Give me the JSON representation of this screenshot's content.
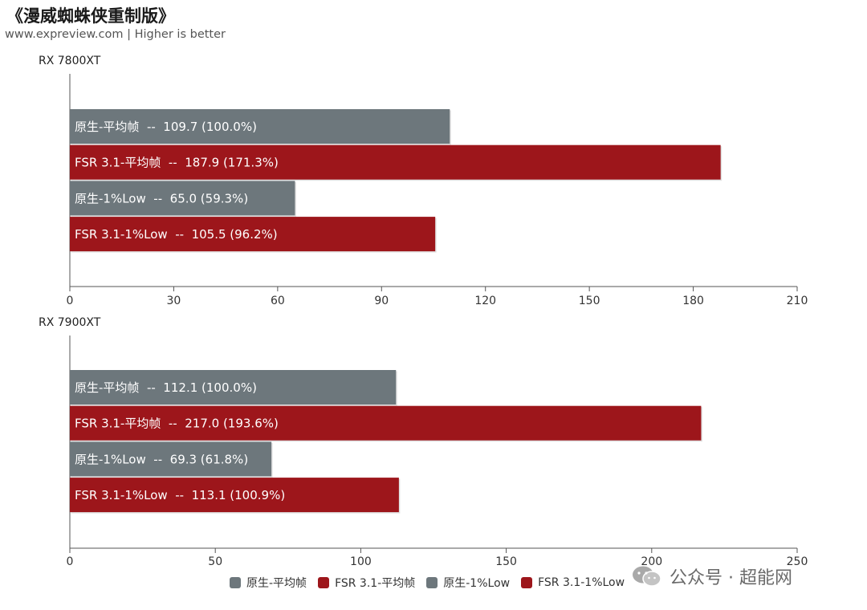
{
  "title": "《漫威蜘蛛侠重制版》",
  "subtitle": "www.expreview.com | Higher is better",
  "colors": {
    "native": "#6d777c",
    "fsr": "#9d161b"
  },
  "legend": [
    {
      "label": "原生-平均帧",
      "color": "#6d777c"
    },
    {
      "label": "FSR 3.1-平均帧",
      "color": "#9d161b"
    },
    {
      "label": "原生-1%Low",
      "color": "#6d777c"
    },
    {
      "label": "FSR 3.1-1%Low",
      "color": "#9d161b"
    }
  ],
  "watermark": {
    "icon": "wechat-icon",
    "text": "公众号 · 超能网"
  },
  "chart_data": [
    {
      "type": "bar",
      "orientation": "horizontal",
      "title": "RX 7800XT",
      "xlim": [
        0,
        210
      ],
      "xticks": [
        0,
        30,
        60,
        90,
        120,
        150,
        180,
        210
      ],
      "bars": [
        {
          "series": "原生-平均帧",
          "value": 109.7,
          "label": "原生-平均帧  --  109.7 (100.0%)",
          "color": "#6d777c"
        },
        {
          "series": "FSR 3.1-平均帧",
          "value": 187.9,
          "label": "FSR 3.1-平均帧  --  187.9 (171.3%)",
          "color": "#9d161b"
        },
        {
          "series": "原生-1%Low",
          "value": 65.0,
          "label": "原生-1%Low  --  65.0 (59.3%)",
          "color": "#6d777c"
        },
        {
          "series": "FSR 3.1-1%Low",
          "value": 105.5,
          "label": "FSR 3.1-1%Low  --  105.5 (96.2%)",
          "color": "#9d161b"
        }
      ]
    },
    {
      "type": "bar",
      "orientation": "horizontal",
      "title": "RX 7900XT",
      "xlim": [
        0,
        250
      ],
      "xticks": [
        0,
        50,
        100,
        150,
        200,
        250
      ],
      "bars": [
        {
          "series": "原生-平均帧",
          "value": 112.1,
          "label": "原生-平均帧  --  112.1 (100.0%)",
          "color": "#6d777c"
        },
        {
          "series": "FSR 3.1-平均帧",
          "value": 217.0,
          "label": "FSR 3.1-平均帧  --  217.0 (193.6%)",
          "color": "#9d161b"
        },
        {
          "series": "原生-1%Low",
          "value": 69.3,
          "label": "原生-1%Low  --  69.3 (61.8%)",
          "color": "#6d777c"
        },
        {
          "series": "FSR 3.1-1%Low",
          "value": 113.1,
          "label": "FSR 3.1-1%Low  --  113.1 (100.9%)",
          "color": "#9d161b"
        }
      ]
    }
  ]
}
